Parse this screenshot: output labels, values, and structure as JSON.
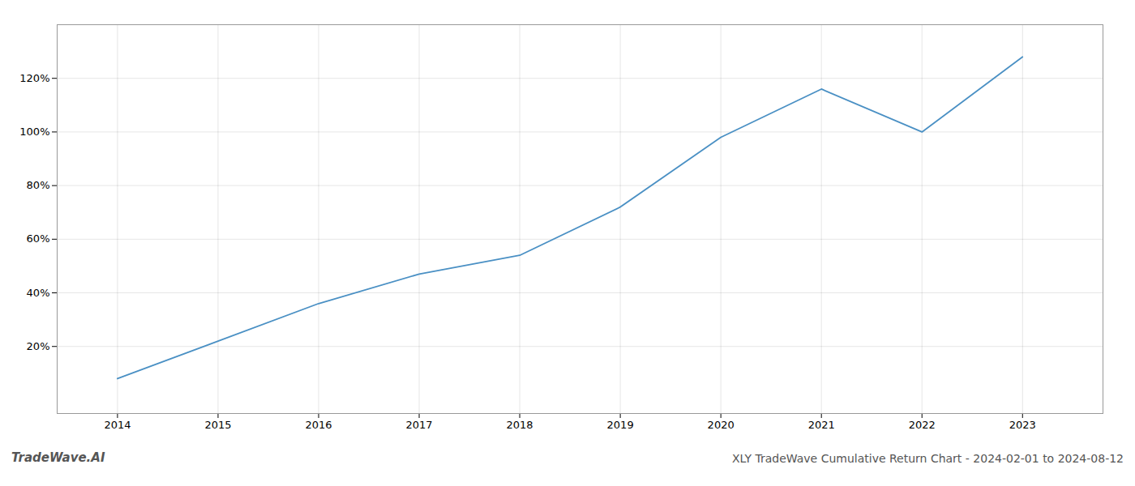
{
  "chart_data": {
    "type": "line",
    "title": "XLY TradeWave Cumulative Return Chart - 2024-02-01 to 2024-08-12",
    "annotations": [
      "TradeWave.AI"
    ],
    "x": [
      2014,
      2015,
      2016,
      2017,
      2018,
      2019,
      2020,
      2021,
      2022,
      2023
    ],
    "values": [
      8,
      22,
      36,
      47,
      54,
      72,
      98,
      116,
      100,
      128
    ],
    "color": "#4a90c4",
    "xlim": [
      2013.4,
      2023.8
    ],
    "xticks": [
      2014,
      2015,
      2016,
      2017,
      2018,
      2019,
      2020,
      2021,
      2022,
      2023
    ],
    "ylim": [
      -5,
      140
    ],
    "yticks": [
      {
        "value": 20,
        "label": "20%"
      },
      {
        "value": 40,
        "label": "40%"
      },
      {
        "value": 60,
        "label": "60%"
      },
      {
        "value": 80,
        "label": "80%"
      },
      {
        "value": 100,
        "label": "100%"
      },
      {
        "value": 120,
        "label": "120%"
      }
    ],
    "grid": true
  }
}
